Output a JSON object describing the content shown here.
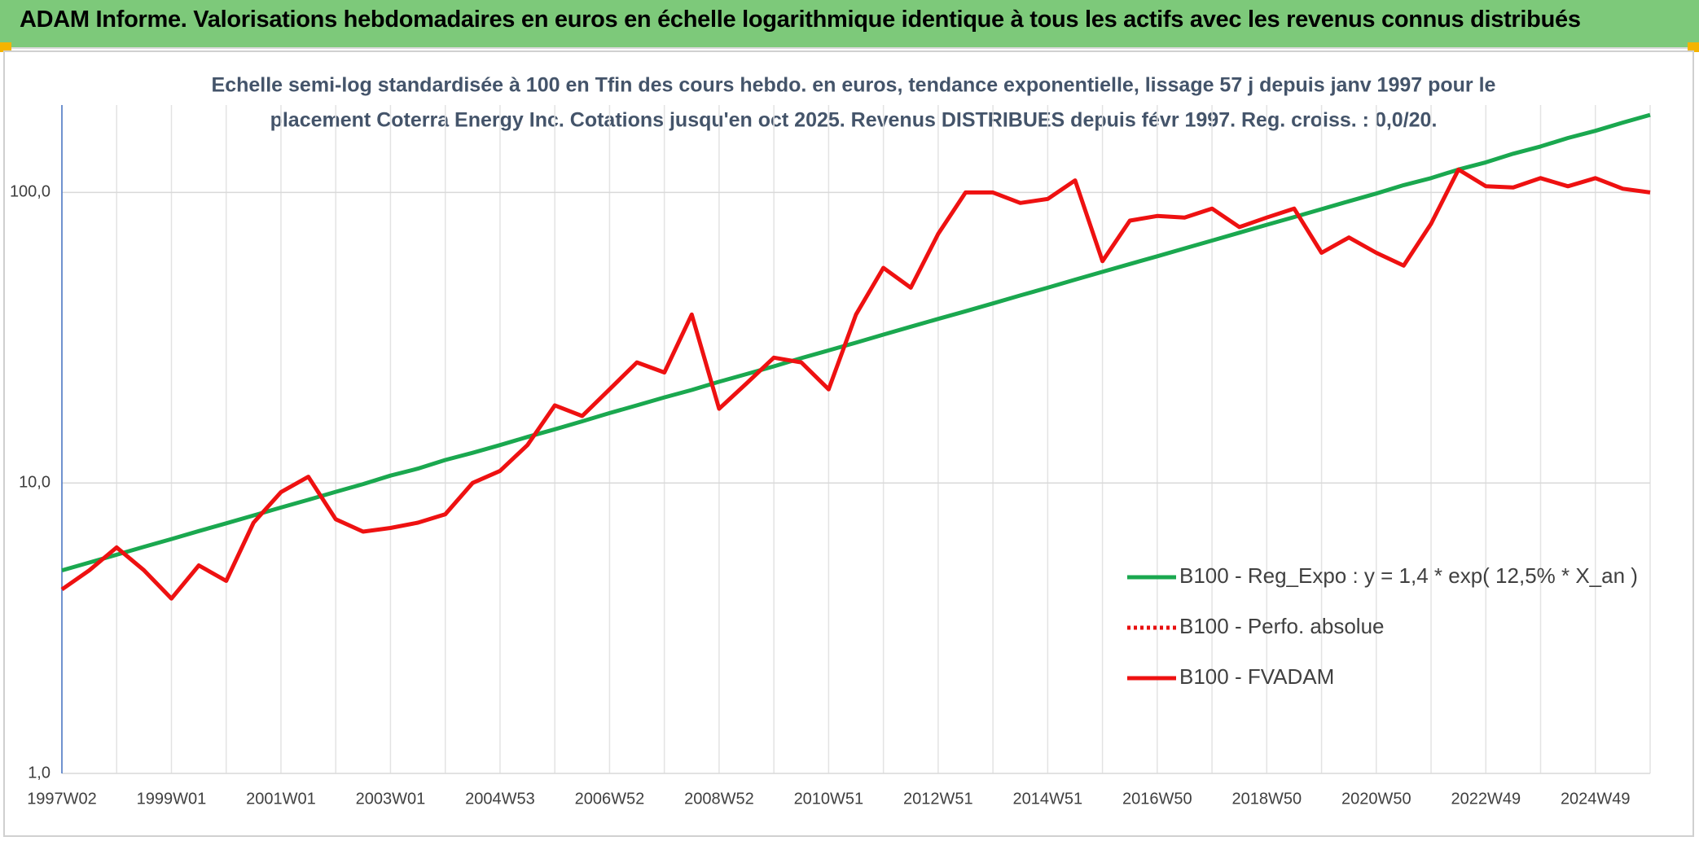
{
  "chart_data": {
    "type": "line",
    "title": "ADAM Informe. Valorisations hebdomadaires en euros en échelle logarithmique identique à tous les actifs avec les revenus connus distribués",
    "subtitle_lines": [
      "Echelle semi-log standardisée à 100 en Tfin des cours hebdo. en euros, tendance exponentielle, lissage 57 j depuis janv 1997 pour le",
      "placement Coterra Energy Inc. Cotations jusqu'en oct 2025. Revenus DISTRIBUES depuis févr 1997. Reg. croiss. : 0,0/20."
    ],
    "categories": [
      "1997W02",
      null,
      null,
      null,
      "1999W01",
      null,
      null,
      null,
      "2001W01",
      null,
      null,
      null,
      "2003W01",
      null,
      null,
      null,
      "2004W53",
      null,
      null,
      null,
      "2006W52",
      null,
      null,
      null,
      "2008W52",
      null,
      null,
      null,
      "2010W51",
      null,
      null,
      null,
      "2012W51",
      null,
      null,
      null,
      "2014W51",
      null,
      null,
      null,
      "2016W50",
      null,
      null,
      null,
      "2018W50",
      null,
      null,
      null,
      "2020W50",
      null,
      null,
      null,
      "2022W49",
      null,
      null,
      null,
      "2024W49",
      null,
      null
    ],
    "series": [
      {
        "name": "B100 - Reg_Expo : y = 1,4 * exp( 12,5% *  X_an )",
        "color": "#1aa84f",
        "style": "solid",
        "values": [
          5.0,
          5.32,
          5.66,
          6.03,
          6.41,
          6.83,
          7.26,
          7.73,
          8.23,
          8.75,
          9.32,
          9.91,
          10.6,
          11.2,
          12.0,
          12.7,
          13.5,
          14.4,
          15.3,
          16.3,
          17.4,
          18.5,
          19.7,
          20.9,
          22.3,
          23.7,
          25.2,
          26.9,
          28.6,
          30.4,
          32.4,
          34.5,
          36.7,
          39.0,
          41.5,
          44.2,
          47.0,
          50.1,
          53.3,
          56.7,
          60.3,
          64.2,
          68.3,
          72.7,
          77.4,
          82.3,
          87.6,
          93.3,
          99.2,
          106,
          112,
          120,
          127,
          136,
          144,
          154,
          163,
          174,
          185
        ]
      },
      {
        "name": "B100 - Perfo. absolue",
        "color": "#e81010",
        "style": "dotted"
      },
      {
        "name": "B100 - FVADAM",
        "color": "#ee1111",
        "style": "solid",
        "values": [
          4.3,
          5.0,
          6.0,
          5.0,
          4.0,
          5.2,
          4.6,
          7.3,
          9.3,
          10.5,
          7.5,
          6.8,
          7.0,
          7.3,
          7.8,
          10.0,
          11.0,
          13.5,
          18.5,
          17.0,
          21.0,
          26.0,
          24.0,
          38.0,
          18.0,
          22.0,
          27.0,
          26.0,
          21.0,
          38.0,
          55.0,
          47.0,
          72.0,
          100.0,
          100.0,
          92.0,
          95.0,
          110.0,
          58.0,
          80.0,
          83.0,
          82.0,
          88.0,
          76.0,
          82.0,
          88.0,
          62.0,
          70.0,
          62.0,
          56.0,
          78.0,
          120.0,
          105.0,
          104.0,
          112.0,
          105.0,
          112.0,
          103.0,
          100.0
        ]
      }
    ],
    "log_y": true,
    "ylim": [
      1,
      200
    ],
    "yticks": [
      {
        "value": 1,
        "label": "1,0"
      },
      {
        "value": 10,
        "label": "10,0"
      },
      {
        "value": 100,
        "label": "100,0"
      }
    ],
    "grid": true,
    "legend": "lower right"
  }
}
